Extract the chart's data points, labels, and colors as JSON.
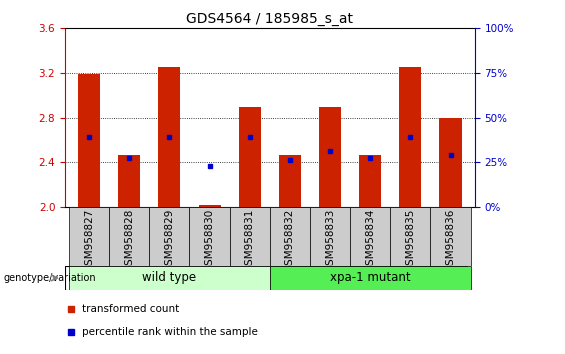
{
  "title": "GDS4564 / 185985_s_at",
  "samples": [
    "GSM958827",
    "GSM958828",
    "GSM958829",
    "GSM958830",
    "GSM958831",
    "GSM958832",
    "GSM958833",
    "GSM958834",
    "GSM958835",
    "GSM958836"
  ],
  "bar_tops": [
    3.19,
    2.47,
    3.25,
    2.02,
    2.9,
    2.47,
    2.9,
    2.47,
    3.25,
    2.8
  ],
  "blue_y": [
    2.63,
    2.44,
    2.63,
    2.37,
    2.63,
    2.42,
    2.5,
    2.44,
    2.63,
    2.47
  ],
  "bar_bottom": 2.0,
  "ylim": [
    2.0,
    3.6
  ],
  "yticks": [
    2.0,
    2.4,
    2.8,
    3.2,
    3.6
  ],
  "right_yticks": [
    0,
    25,
    50,
    75,
    100
  ],
  "right_ylabels": [
    "0%",
    "25%",
    "50%",
    "75%",
    "100%"
  ],
  "bar_color": "#cc2200",
  "blue_color": "#0000cc",
  "bar_width": 0.55,
  "wild_type_color": "#ccffcc",
  "xpa_color": "#55ee55",
  "legend_items": [
    "transformed count",
    "percentile rank within the sample"
  ],
  "ylabel_color": "#cc0000",
  "right_ylabel_color": "#0000cc",
  "title_fontsize": 10,
  "tick_fontsize": 7.5,
  "label_fontsize": 8
}
